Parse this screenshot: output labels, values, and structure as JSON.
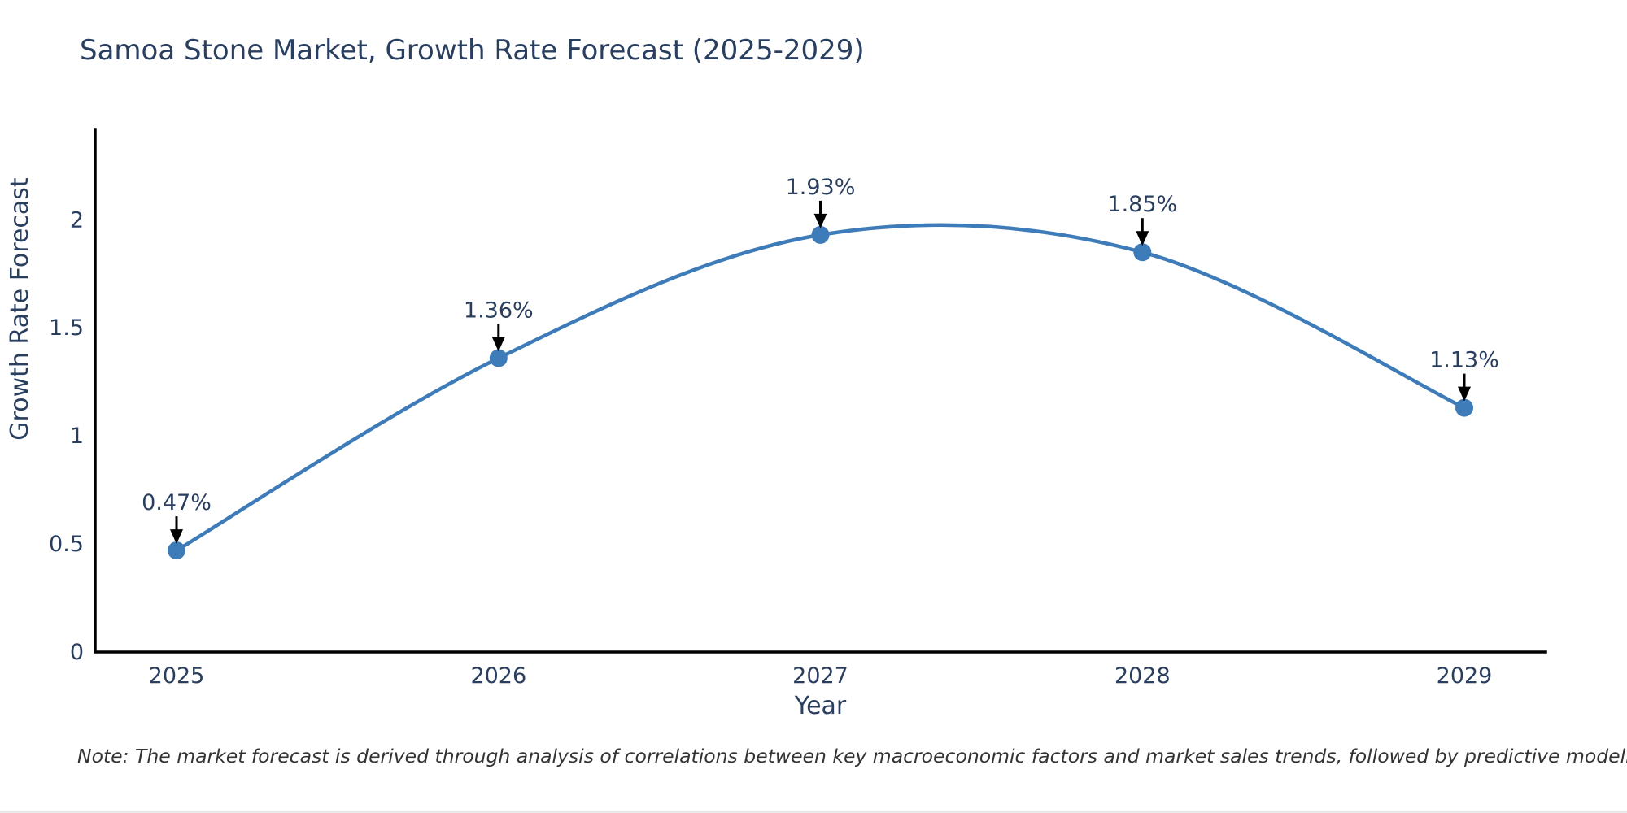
{
  "page": {
    "note": "Note: The market forecast is derived through analysis of correlations between key macroeconomic factors and market sales trends, followed by predictive modeling to project future sales"
  },
  "chart_data": {
    "type": "line",
    "line_shape": "spline",
    "title": "Samoa Stone Market, Growth Rate Forecast (2025-2029)",
    "xlabel": "Year",
    "ylabel": "Growth Rate Forecast",
    "x": [
      2025,
      2026,
      2027,
      2028,
      2029
    ],
    "y": [
      0.47,
      1.36,
      1.93,
      1.85,
      1.13
    ],
    "point_labels": [
      "0.47%",
      "1.36%",
      "1.93%",
      "1.85%",
      "1.13%"
    ],
    "xticks": [
      "2025",
      "2026",
      "2027",
      "2028",
      "2029"
    ],
    "yticks": [
      0,
      0.5,
      1,
      1.5,
      2
    ],
    "ylim": [
      0,
      2.415
    ],
    "grid": false,
    "legend": "none",
    "markers": true,
    "annotations_have_arrows": true,
    "colors": {
      "line": "#3e7cb9",
      "marker": "#3e7cb9",
      "axis": "#000000",
      "tick_text": "#2a3f5f",
      "title_text": "#2a3f5f",
      "annotation_text": "#2a3f5f",
      "arrow": "#000000"
    }
  }
}
